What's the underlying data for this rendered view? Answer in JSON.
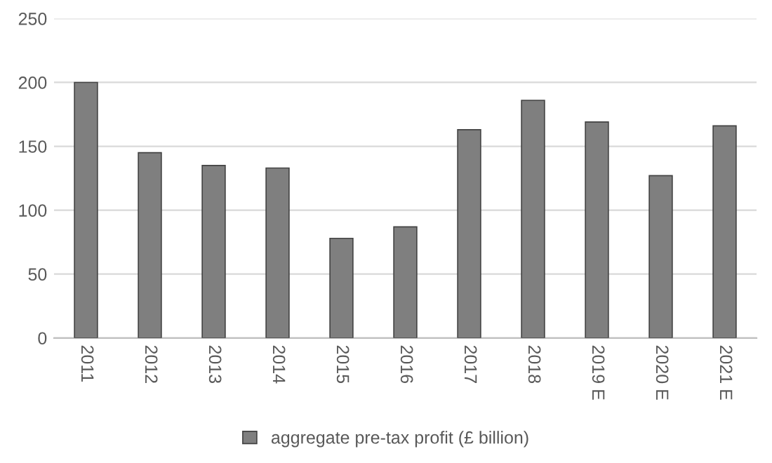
{
  "chart_data": {
    "type": "bar",
    "categories": [
      "2011",
      "2012",
      "2013",
      "2014",
      "2015",
      "2016",
      "2017",
      "2018",
      "2019 E",
      "2020 E",
      "2021 E"
    ],
    "series": [
      {
        "name": "aggregate pre-tax profit (£ billion)",
        "color": "#7f7f7f",
        "values": [
          200,
          145,
          135,
          133,
          78,
          87,
          163,
          186,
          169,
          127,
          166
        ]
      }
    ],
    "ylim": [
      0,
      250
    ],
    "yticks": [
      0,
      50,
      100,
      150,
      200,
      250
    ],
    "grid": "y",
    "legend": "bottom"
  }
}
